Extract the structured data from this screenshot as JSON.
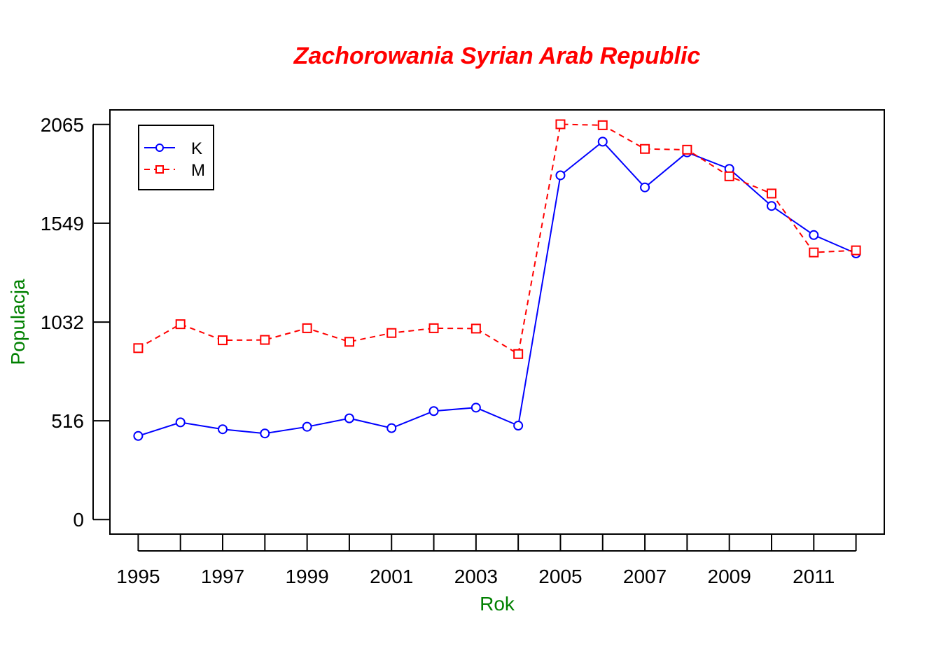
{
  "chart_data": {
    "type": "line",
    "title": "Zachorowania Syrian Arab Republic",
    "xlabel": "Rok",
    "ylabel": "Populacja",
    "x": [
      1995,
      1996,
      1997,
      1998,
      1999,
      2000,
      2001,
      2002,
      2003,
      2004,
      2005,
      2006,
      2007,
      2008,
      2009,
      2010,
      2011,
      2012
    ],
    "x_tick_labels": [
      "1995",
      "1997",
      "1999",
      "2001",
      "2003",
      "2005",
      "2007",
      "2009",
      "2011"
    ],
    "x_ticks": [
      1995,
      1996,
      1997,
      1998,
      1999,
      2000,
      2001,
      2002,
      2003,
      2004,
      2005,
      2006,
      2007,
      2008,
      2009,
      2010,
      2011,
      2012
    ],
    "y_ticks": [
      0,
      516,
      1032,
      1549,
      2065
    ],
    "y_tick_labels": [
      "0",
      "516",
      "1032",
      "1549",
      "2065"
    ],
    "xlim": [
      1994.33,
      2012.67
    ],
    "ylim": [
      -76,
      2141
    ],
    "grid": false,
    "legend_position": "top-left",
    "series": [
      {
        "name": "K",
        "color": "#0000ff",
        "line_style": "solid",
        "marker": "circle",
        "values": [
          437,
          508,
          472,
          450,
          485,
          529,
          478,
          567,
          585,
          491,
          1799,
          1975,
          1736,
          1919,
          1833,
          1639,
          1487,
          1391
        ]
      },
      {
        "name": "M",
        "color": "#ff0000",
        "line_style": "dashed",
        "marker": "square",
        "values": [
          896,
          1021,
          937,
          939,
          1000,
          929,
          975,
          1000,
          998,
          865,
          2066,
          2061,
          1937,
          1933,
          1794,
          1704,
          1396,
          1407
        ]
      }
    ]
  },
  "colors": {
    "title": "#ff0000",
    "axis_label": "#008000"
  }
}
